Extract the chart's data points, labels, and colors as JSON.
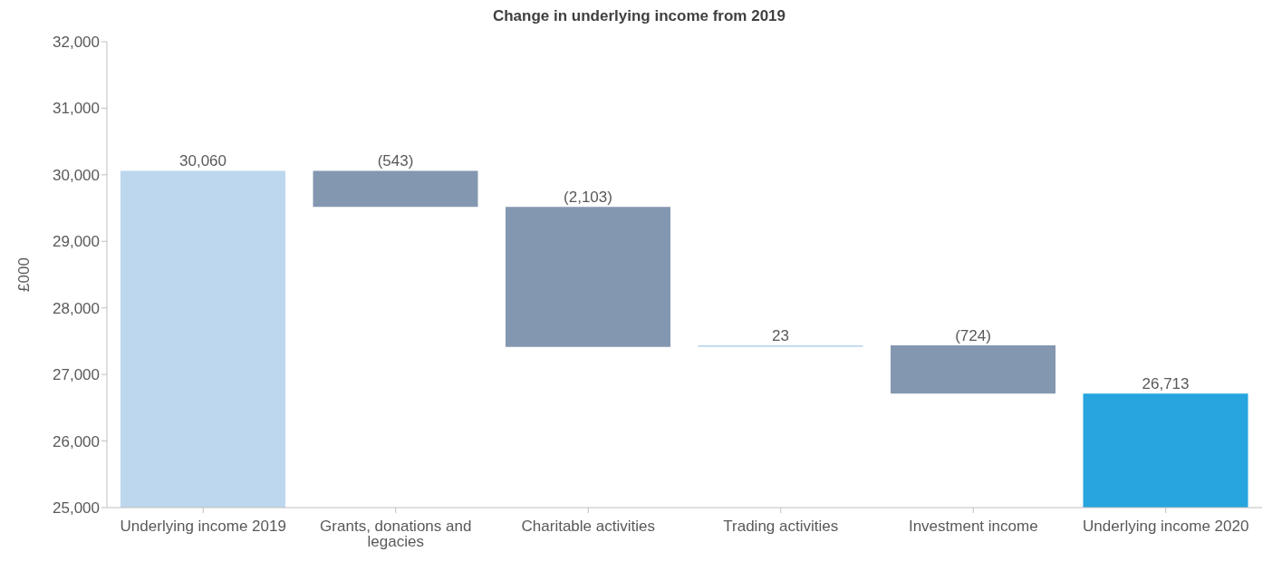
{
  "chart_data": {
    "type": "bar",
    "title": "Change in underlying income from 2019",
    "ylabel": "£000",
    "categories": [
      "Underlying income 2019",
      "Grants, donations and legacies",
      "Charitable activities",
      "Trading activities",
      "Investment income",
      "Underlying income 2020"
    ],
    "values": [
      30060,
      -543,
      -2103,
      23,
      -724,
      26713
    ],
    "base": [
      null,
      30060,
      29517,
      27414,
      27437,
      null
    ],
    "colors": [
      "#bdd7ee",
      "#8497b0",
      "#8497b0",
      "#bdd7ee",
      "#8497b0",
      "#26a5de"
    ],
    "value_labels": [
      "30,060",
      "(543)",
      "(2,103)",
      "23",
      "(724)",
      "26,713"
    ],
    "ylim": [
      25000,
      32000
    ],
    "yticks": [
      {
        "value": 25000,
        "label": "25,000"
      },
      {
        "value": 26000,
        "label": "26,000"
      },
      {
        "value": 27000,
        "label": "27,000"
      },
      {
        "value": 28000,
        "label": "28,000"
      },
      {
        "value": 29000,
        "label": "29,000"
      },
      {
        "value": 30000,
        "label": "30,000"
      },
      {
        "value": 31000,
        "label": "31,000"
      },
      {
        "value": 32000,
        "label": "32,000"
      }
    ],
    "grid": false,
    "legend": false
  }
}
